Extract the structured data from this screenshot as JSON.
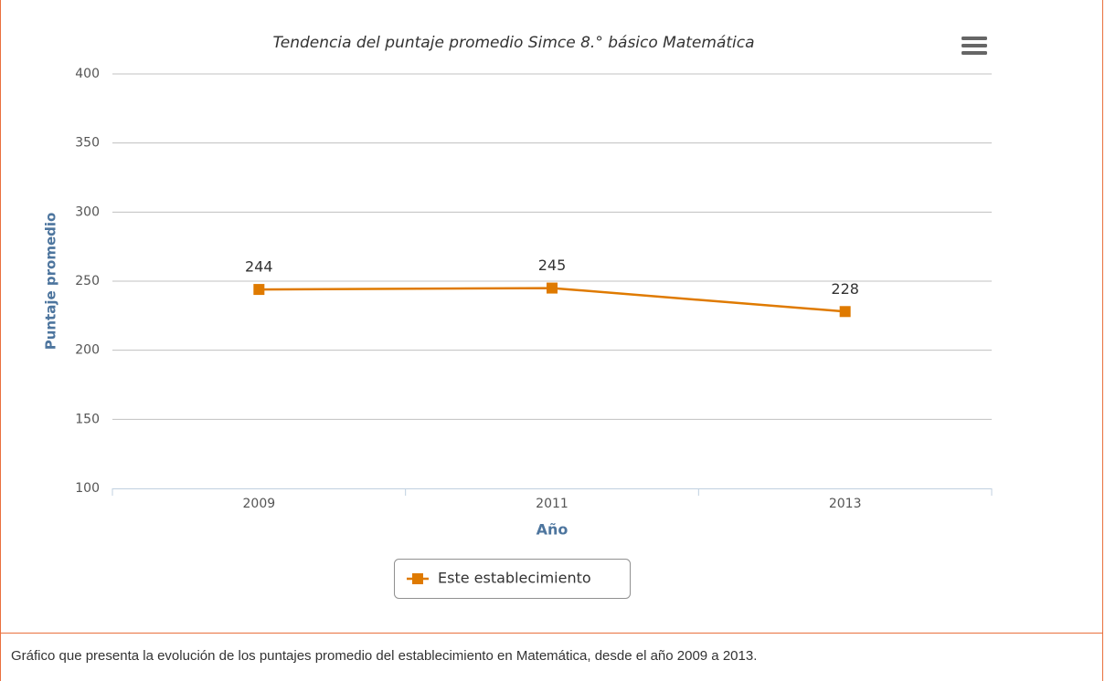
{
  "chart_data": {
    "type": "line",
    "title": "Tendencia del puntaje promedio Simce 8.° básico Matemática",
    "categories": [
      "2009",
      "2011",
      "2013"
    ],
    "series": [
      {
        "name": "Este establecimiento",
        "color": "#df7a00",
        "values": [
          244,
          245,
          228
        ]
      }
    ],
    "ylim": [
      100,
      400
    ],
    "yticks": [
      100,
      150,
      200,
      250,
      300,
      350,
      400
    ],
    "x_label": "Año",
    "y_label": "Puntaje promedio",
    "grid": true,
    "data_labels": true
  },
  "caption": "Gráfico que presenta la evolución de los puntajes promedio del establecimiento en Matemática, desde el año 2009 a 2013."
}
